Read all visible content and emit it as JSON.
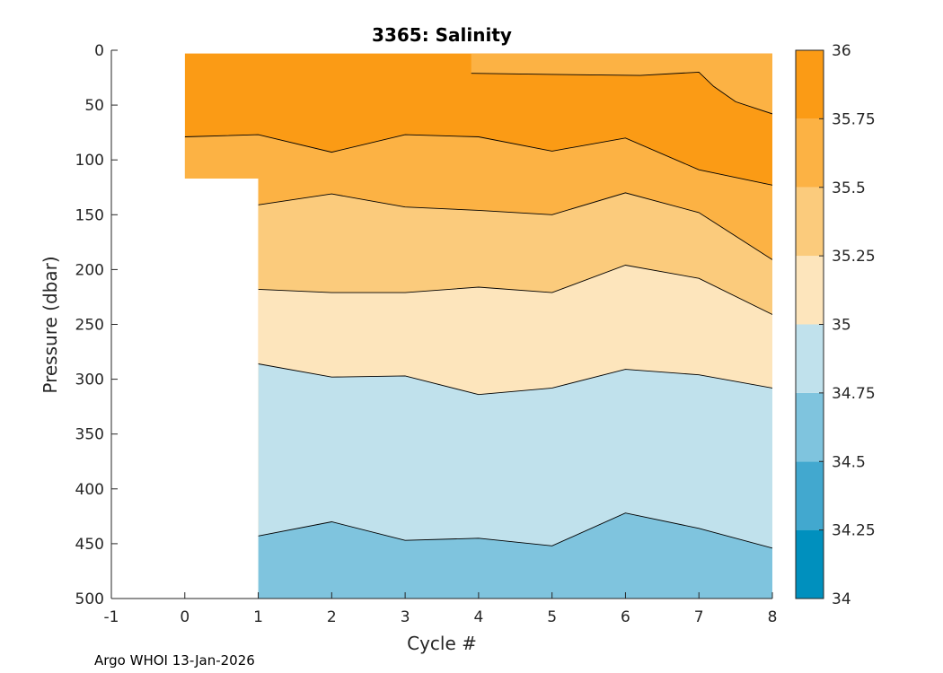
{
  "chart_data": {
    "type": "contour",
    "title": "3365:  Salinity",
    "xlabel": "Cycle #",
    "ylabel": "Pressure (dbar)",
    "xlim": [
      -1,
      8
    ],
    "ylim": [
      500,
      0
    ],
    "x_ticks": [
      -1,
      0,
      1,
      2,
      3,
      4,
      5,
      6,
      7,
      8
    ],
    "y_ticks": [
      0,
      50,
      100,
      150,
      200,
      250,
      300,
      350,
      400,
      450,
      500
    ],
    "colorbar": {
      "levels": [
        34,
        34.25,
        34.5,
        34.75,
        35,
        35.25,
        35.5,
        35.75,
        36
      ],
      "tick_labels": [
        "34",
        "34.25",
        "34.5",
        "34.75",
        "35",
        "35.25",
        "35.5",
        "35.75",
        "36"
      ],
      "colors": [
        "#0090be",
        "#42a8cf",
        "#7fc4de",
        "#c0e1ec",
        "#fde5bc",
        "#fbcb7c",
        "#fcb244",
        "#fb9b15"
      ]
    },
    "data_extent": {
      "cycle_0_pressure_range": [
        3,
        117
      ],
      "cycles_1_to_8_pressure_range": [
        3,
        500
      ]
    },
    "isohalines": [
      {
        "level": 35.75,
        "cycles": [
          0,
          1,
          2,
          3,
          4,
          5,
          6,
          7,
          8
        ],
        "pressure": [
          79,
          77,
          93,
          77,
          79,
          92,
          80,
          109,
          123
        ]
      },
      {
        "level": 35.75,
        "note": "upper-right boundary",
        "cycles": [
          3.9,
          5,
          6.2,
          7,
          7.2,
          7.5,
          8
        ],
        "pressure": [
          21,
          22,
          23,
          20,
          33,
          47,
          58
        ]
      },
      {
        "level": 35.5,
        "cycles": [
          1,
          2,
          3,
          4,
          5,
          6,
          7,
          8
        ],
        "pressure": [
          141,
          131,
          143,
          146,
          150,
          130,
          148,
          191
        ]
      },
      {
        "level": 35.25,
        "cycles": [
          1,
          2,
          3,
          4,
          5,
          6,
          7,
          8
        ],
        "pressure": [
          218,
          221,
          221,
          216,
          221,
          196,
          208,
          241
        ]
      },
      {
        "level": 35.0,
        "cycles": [
          1,
          2,
          3,
          4,
          5,
          6,
          7,
          8
        ],
        "pressure": [
          286,
          298,
          297,
          314,
          308,
          291,
          296,
          308
        ]
      },
      {
        "level": 34.75,
        "cycles": [
          1,
          2,
          3,
          4,
          5,
          6,
          7,
          8
        ],
        "pressure": [
          443,
          430,
          447,
          445,
          452,
          422,
          436,
          454
        ]
      }
    ],
    "annotation": "Argo WHOI 13-Jan-2026"
  }
}
